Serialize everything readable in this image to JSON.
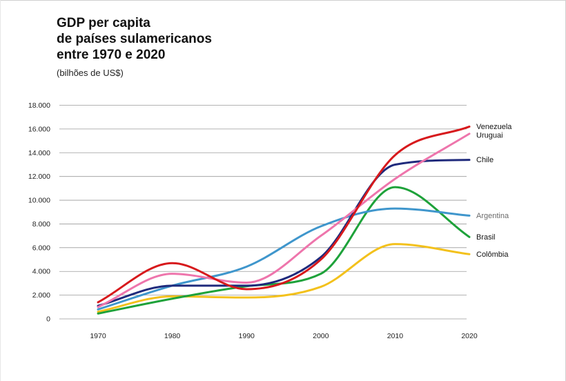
{
  "title_lines": [
    "GDP per capita",
    "de países sulamericanos",
    "entre 1970 e 2020"
  ],
  "subtitle": "(bilhões de US$)",
  "chart_data": {
    "type": "line",
    "title": "GDP per capita de países sulamericanos entre 1970 e 2020",
    "subtitle": "(bilhões de US$)",
    "xlabel": "",
    "ylabel": "",
    "x": [
      1970,
      1980,
      1990,
      2000,
      2010,
      2020
    ],
    "x_tick_labels": [
      "1970",
      "1980",
      "1990",
      "2000",
      "2010",
      "2020"
    ],
    "ylim": [
      0,
      18000
    ],
    "y_ticks": [
      0,
      2000,
      4000,
      6000,
      8000,
      10000,
      12000,
      14000,
      16000,
      18000
    ],
    "y_tick_labels": [
      "0",
      "2.000",
      "4.000",
      "6.000",
      "8.000",
      "10.000",
      "12.000",
      "14.000",
      "16.000",
      "18.000"
    ],
    "grid": true,
    "legend_placement": "right, at line ends",
    "series": [
      {
        "name": "Venezuela",
        "color": "#d7191c",
        "values": [
          1400,
          4700,
          2500,
          5000,
          13800,
          16200
        ]
      },
      {
        "name": "Uruguai",
        "color": "#ee75ac",
        "values": [
          1000,
          3800,
          3050,
          7000,
          11800,
          15600
        ]
      },
      {
        "name": "Chile",
        "color": "#1f2a7c",
        "values": [
          1100,
          2800,
          2800,
          5200,
          13000,
          13400
        ]
      },
      {
        "name": "Argentina",
        "color": "#3f96cc",
        "values": [
          800,
          2800,
          4400,
          7800,
          9300,
          8700
        ]
      },
      {
        "name": "Brasil",
        "color": "#1ea23a",
        "values": [
          450,
          1700,
          2750,
          3800,
          11100,
          6900
        ]
      },
      {
        "name": "Colômbia",
        "color": "#f3c11c",
        "values": [
          600,
          1900,
          1800,
          2700,
          6300,
          5450
        ]
      }
    ]
  }
}
